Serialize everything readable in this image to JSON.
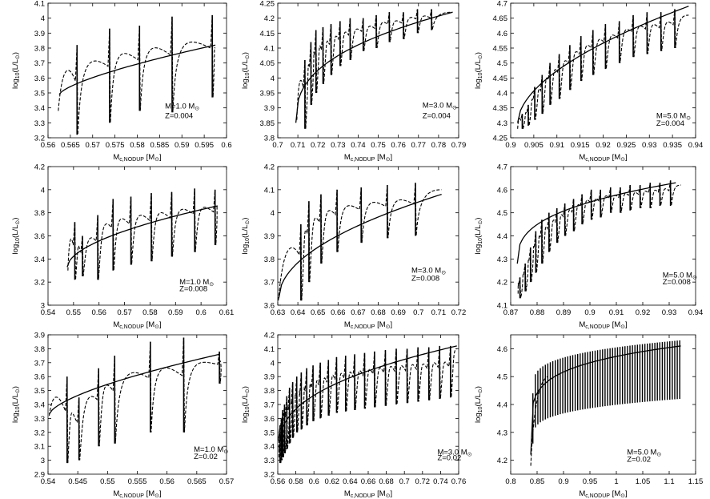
{
  "chart_data": [
    {
      "type": "line",
      "row": 0,
      "col": 0,
      "mass": "1.0",
      "z": "0.004",
      "xlim": [
        0.56,
        0.6
      ],
      "ylim": [
        3.2,
        4.1
      ],
      "xticks": [
        "0.56",
        "0.565",
        "0.57",
        "0.575",
        "0.58",
        "0.585",
        "0.59",
        "0.595",
        "0.6"
      ],
      "yticks": [
        "3.2",
        "3.3",
        "3.4",
        "3.5",
        "3.6",
        "3.7",
        "3.8",
        "3.9",
        "4",
        "4.1"
      ],
      "xtick_vals": [
        0.56,
        0.565,
        0.57,
        0.575,
        0.58,
        0.585,
        0.59,
        0.595,
        0.6
      ],
      "ytick_vals": [
        3.2,
        3.3,
        3.4,
        3.5,
        3.6,
        3.7,
        3.8,
        3.9,
        4.0,
        4.1
      ],
      "fit": {
        "x0": 0.5625,
        "x1": 0.5975,
        "y0": 3.49,
        "y1": 3.82,
        "p": 0.7
      },
      "pulses": [
        [
          0.5665,
          3.22,
          3.82
        ],
        [
          0.5738,
          3.3,
          3.93
        ],
        [
          0.5805,
          3.38,
          3.95
        ],
        [
          0.5878,
          3.37,
          4.01
        ],
        [
          0.5968,
          3.47,
          4.02
        ]
      ],
      "start": [
        0.5623,
        3.38
      ],
      "end": [
        0.5975,
        3.8
      ],
      "ann_x": 0.5862,
      "ann_y1": 3.395,
      "ann_y2": 3.33
    },
    {
      "type": "line",
      "row": 0,
      "col": 1,
      "mass": "3.0",
      "z": "0.004",
      "xlim": [
        0.7,
        0.79
      ],
      "ylim": [
        3.8,
        4.25
      ],
      "xticks": [
        "0.7",
        "0.71",
        "0.72",
        "0.73",
        "0.74",
        "0.75",
        "0.76",
        "0.77",
        "0.78",
        "0.79"
      ],
      "yticks": [
        "3.8",
        "3.85",
        "3.9",
        "3.95",
        "4",
        "4.05",
        "4.1",
        "4.15",
        "4.2",
        "4.25"
      ],
      "xtick_vals": [
        0.7,
        0.71,
        0.72,
        0.73,
        0.74,
        0.75,
        0.76,
        0.77,
        0.78,
        0.79
      ],
      "ytick_vals": [
        3.8,
        3.85,
        3.9,
        3.95,
        4.0,
        4.05,
        4.1,
        4.15,
        4.2,
        4.25
      ],
      "fit": {
        "x0": 0.709,
        "x1": 0.787,
        "y0": 3.85,
        "y1": 4.22,
        "p": 0.38
      },
      "pulses": [
        [
          0.7135,
          3.83,
          4.06
        ],
        [
          0.7165,
          3.91,
          4.12
        ],
        [
          0.719,
          3.95,
          4.16
        ],
        [
          0.7225,
          3.98,
          4.17
        ],
        [
          0.7265,
          4.01,
          4.18
        ],
        [
          0.731,
          4.04,
          4.19
        ],
        [
          0.736,
          4.06,
          4.2
        ],
        [
          0.7425,
          4.09,
          4.2
        ],
        [
          0.749,
          4.1,
          4.21
        ],
        [
          0.7555,
          4.12,
          4.22
        ],
        [
          0.7625,
          4.13,
          4.22
        ],
        [
          0.7695,
          4.15,
          4.23
        ],
        [
          0.7765,
          4.16,
          4.23
        ]
      ],
      "start": [
        0.7095,
        3.86
      ],
      "end": [
        0.787,
        4.22
      ],
      "ann_x": 0.772,
      "ann_y1": 3.9,
      "ann_y2": 3.865
    },
    {
      "type": "line",
      "row": 0,
      "col": 2,
      "mass": "5.0",
      "z": "0.004",
      "xlim": [
        0.9,
        0.94
      ],
      "ylim": [
        4.25,
        4.7
      ],
      "xticks": [
        "0.9",
        "0.905",
        "0.91",
        "0.915",
        "0.92",
        "0.925",
        "0.93",
        "0.935",
        "0.94"
      ],
      "yticks": [
        "4.25",
        "4.3",
        "4.35",
        "4.4",
        "4.45",
        "4.5",
        "4.55",
        "4.6",
        "4.65",
        "4.7"
      ],
      "xtick_vals": [
        0.9,
        0.905,
        0.91,
        0.915,
        0.92,
        0.925,
        0.93,
        0.935,
        0.94
      ],
      "ytick_vals": [
        4.25,
        4.3,
        4.35,
        4.4,
        4.45,
        4.5,
        4.55,
        4.6,
        4.65,
        4.7
      ],
      "fit": {
        "x0": 0.9015,
        "x1": 0.9385,
        "y0": 4.3,
        "y1": 4.69,
        "p": 0.55
      },
      "pulses": [
        [
          0.9025,
          4.28,
          4.33
        ],
        [
          0.9038,
          4.29,
          4.36
        ],
        [
          0.9052,
          4.31,
          4.42
        ],
        [
          0.9068,
          4.33,
          4.46
        ],
        [
          0.9085,
          4.36,
          4.5
        ],
        [
          0.9105,
          4.38,
          4.53
        ],
        [
          0.9128,
          4.41,
          4.56
        ],
        [
          0.9152,
          4.44,
          4.59
        ],
        [
          0.9178,
          4.46,
          4.61
        ],
        [
          0.9205,
          4.48,
          4.63
        ],
        [
          0.9235,
          4.5,
          4.64
        ],
        [
          0.9265,
          4.52,
          4.66
        ],
        [
          0.9295,
          4.53,
          4.67
        ],
        [
          0.9325,
          4.54,
          4.67
        ],
        [
          0.9355,
          4.55,
          4.68
        ]
      ],
      "start": [
        0.9015,
        4.28
      ],
      "end": [
        0.9385,
        4.66
      ],
      "ann_x": 0.9315,
      "ann_y1": 4.315,
      "ann_y2": 4.29
    },
    {
      "type": "line",
      "row": 1,
      "col": 0,
      "mass": "1.0",
      "z": "0.008",
      "xlim": [
        0.54,
        0.61
      ],
      "ylim": [
        3.0,
        4.2
      ],
      "xticks": [
        "0.54",
        "0.55",
        "0.56",
        "0.57",
        "0.58",
        "0.59",
        "0.6",
        "0.61"
      ],
      "yticks": [
        "3",
        "3.2",
        "3.4",
        "3.6",
        "3.8",
        "4",
        "4.2"
      ],
      "xtick_vals": [
        0.54,
        0.55,
        0.56,
        0.57,
        0.58,
        0.59,
        0.6,
        0.61
      ],
      "ytick_vals": [
        3.0,
        3.2,
        3.4,
        3.6,
        3.8,
        4.0,
        4.2
      ],
      "fit": {
        "x0": 0.5475,
        "x1": 0.6065,
        "y0": 3.33,
        "y1": 3.86,
        "p": 0.55
      },
      "pulses": [
        [
          0.5505,
          3.22,
          3.72
        ],
        [
          0.5535,
          3.25,
          3.6
        ],
        [
          0.5595,
          3.22,
          3.78
        ],
        [
          0.5655,
          3.3,
          3.92
        ],
        [
          0.5725,
          3.35,
          3.94
        ],
        [
          0.5805,
          3.38,
          3.97
        ],
        [
          0.5885,
          3.42,
          3.98
        ],
        [
          0.5975,
          3.46,
          4.01
        ],
        [
          0.6055,
          3.52,
          4.0
        ]
      ],
      "start": [
        0.5478,
        3.3
      ],
      "end": [
        0.6065,
        3.86
      ],
      "ann_x": 0.5915,
      "ann_y1": 3.18,
      "ann_y2": 3.12
    },
    {
      "type": "line",
      "row": 1,
      "col": 1,
      "mass": "3.0",
      "z": "0.008",
      "xlim": [
        0.63,
        0.72
      ],
      "ylim": [
        3.6,
        4.2
      ],
      "xticks": [
        "0.63",
        "0.64",
        "0.65",
        "0.66",
        "0.67",
        "0.68",
        "0.69",
        "0.7",
        "0.71",
        "0.72"
      ],
      "yticks": [
        "3.6",
        "3.7",
        "3.8",
        "3.9",
        "4",
        "4.1",
        "4.2"
      ],
      "xtick_vals": [
        0.63,
        0.64,
        0.65,
        0.66,
        0.67,
        0.68,
        0.69,
        0.7,
        0.71,
        0.72
      ],
      "ytick_vals": [
        3.6,
        3.7,
        3.8,
        3.9,
        4.0,
        4.1,
        4.2
      ],
      "fit": {
        "x0": 0.6305,
        "x1": 0.7115,
        "y0": 3.63,
        "y1": 4.08,
        "p": 0.5
      },
      "pulses": [
        [
          0.6415,
          3.62,
          3.95
        ],
        [
          0.6455,
          3.7,
          4.05
        ],
        [
          0.6515,
          3.78,
          4.08
        ],
        [
          0.6595,
          3.83,
          4.1
        ],
        [
          0.6715,
          3.87,
          4.11
        ],
        [
          0.6845,
          3.89,
          4.12
        ],
        [
          0.6985,
          3.9,
          4.13
        ]
      ],
      "start": [
        0.6303,
        3.62
      ],
      "end": [
        0.7115,
        4.1
      ],
      "ann_x": 0.6965,
      "ann_y1": 3.74,
      "ann_y2": 3.705
    },
    {
      "type": "line",
      "row": 1,
      "col": 2,
      "mass": "5.0",
      "z": "0.008",
      "xlim": [
        0.87,
        0.94
      ],
      "ylim": [
        4.1,
        4.7
      ],
      "xticks": [
        "0.87",
        "0.88",
        "0.89",
        "0.9",
        "0.91",
        "0.92",
        "0.93",
        "0.94"
      ],
      "yticks": [
        "4.1",
        "4.2",
        "4.3",
        "4.4",
        "4.5",
        "4.6",
        "4.7"
      ],
      "xtick_vals": [
        0.87,
        0.88,
        0.89,
        0.9,
        0.91,
        0.92,
        0.93,
        0.94
      ],
      "ytick_vals": [
        4.1,
        4.2,
        4.3,
        4.4,
        4.5,
        4.6,
        4.7
      ],
      "fit": {
        "x0": 0.8725,
        "x1": 0.9325,
        "y0": 4.28,
        "y1": 4.63,
        "p": 0.35
      },
      "pulses": [
        [
          0.8735,
          4.13,
          4.22
        ],
        [
          0.8755,
          4.16,
          4.28
        ],
        [
          0.8775,
          4.2,
          4.35
        ],
        [
          0.8795,
          4.24,
          4.42
        ],
        [
          0.8818,
          4.28,
          4.47
        ],
        [
          0.8845,
          4.33,
          4.5
        ],
        [
          0.8875,
          4.37,
          4.52
        ],
        [
          0.8905,
          4.4,
          4.54
        ],
        [
          0.8938,
          4.42,
          4.56
        ],
        [
          0.897,
          4.45,
          4.58
        ],
        [
          0.9005,
          4.47,
          4.6
        ],
        [
          0.904,
          4.48,
          4.6
        ],
        [
          0.9078,
          4.5,
          4.61
        ],
        [
          0.9115,
          4.5,
          4.61
        ],
        [
          0.9152,
          4.51,
          4.62
        ],
        [
          0.919,
          4.52,
          4.62
        ],
        [
          0.9228,
          4.52,
          4.63
        ],
        [
          0.9265,
          4.53,
          4.63
        ],
        [
          0.9305,
          4.53,
          4.64
        ]
      ],
      "start": [
        0.8728,
        4.15
      ],
      "end": [
        0.9345,
        4.62
      ],
      "ann_x": 0.9275,
      "ann_y1": 4.22,
      "ann_y2": 4.19
    },
    {
      "type": "line",
      "row": 2,
      "col": 0,
      "mass": "1.0",
      "z": "0.02",
      "xlim": [
        0.54,
        0.57
      ],
      "ylim": [
        2.9,
        3.9
      ],
      "xticks": [
        "0.54",
        "0.545",
        "0.55",
        "0.555",
        "0.56",
        "0.565",
        "0.57"
      ],
      "yticks": [
        "2.9",
        "3",
        "3.1",
        "3.2",
        "3.3",
        "3.4",
        "3.5",
        "3.6",
        "3.7",
        "3.8",
        "3.9"
      ],
      "xtick_vals": [
        0.54,
        0.545,
        0.55,
        0.555,
        0.56,
        0.565,
        0.57
      ],
      "ytick_vals": [
        2.9,
        3.0,
        3.1,
        3.2,
        3.3,
        3.4,
        3.5,
        3.6,
        3.7,
        3.8,
        3.9
      ],
      "fit": {
        "x0": 0.5402,
        "x1": 0.5688,
        "y0": 3.33,
        "y1": 3.76,
        "p": 0.65
      },
      "pulses": [
        [
          0.5432,
          2.98,
          3.6
        ],
        [
          0.5452,
          3.0,
          3.45
        ],
        [
          0.5485,
          3.1,
          3.66
        ],
        [
          0.5512,
          3.12,
          3.75
        ],
        [
          0.5572,
          3.2,
          3.85
        ],
        [
          0.5628,
          3.2,
          3.88
        ],
        [
          0.5688,
          3.55,
          3.78
        ]
      ],
      "start": [
        0.5402,
        3.32
      ],
      "end": [
        0.5688,
        3.72
      ],
      "ann_x": 0.5645,
      "ann_y1": 3.06,
      "ann_y2": 3.01
    },
    {
      "type": "line",
      "row": 2,
      "col": 1,
      "mass": "3.0",
      "z": "0.02",
      "xlim": [
        0.56,
        0.76
      ],
      "ylim": [
        3.2,
        4.2
      ],
      "xticks": [
        "0.56",
        "0.58",
        "0.6",
        "0.62",
        "0.64",
        "0.66",
        "0.68",
        "0.7",
        "0.72",
        "0.74",
        "0.76"
      ],
      "yticks": [
        "3.2",
        "3.3",
        "3.4",
        "3.5",
        "3.6",
        "3.7",
        "3.8",
        "3.9",
        "4",
        "4.1",
        "4.2"
      ],
      "xtick_vals": [
        0.56,
        0.58,
        0.6,
        0.62,
        0.64,
        0.66,
        0.68,
        0.7,
        0.72,
        0.74,
        0.76
      ],
      "ytick_vals": [
        3.2,
        3.3,
        3.4,
        3.5,
        3.6,
        3.7,
        3.8,
        3.9,
        4.0,
        4.1,
        4.2
      ],
      "fit": {
        "x0": 0.5615,
        "x1": 0.758,
        "y0": 3.38,
        "y1": 4.12,
        "p": 0.4
      },
      "pulses": [
        [
          0.5625,
          3.28,
          3.55
        ],
        [
          0.564,
          3.3,
          3.6
        ],
        [
          0.5655,
          3.32,
          3.66
        ],
        [
          0.5675,
          3.35,
          3.7
        ],
        [
          0.57,
          3.38,
          3.76
        ],
        [
          0.573,
          3.42,
          3.82
        ],
        [
          0.5765,
          3.46,
          3.86
        ],
        [
          0.581,
          3.5,
          3.9
        ],
        [
          0.586,
          3.52,
          3.93
        ],
        [
          0.592,
          3.55,
          3.96
        ],
        [
          0.599,
          3.58,
          3.98
        ],
        [
          0.607,
          3.6,
          4.0
        ],
        [
          0.616,
          3.62,
          4.02
        ],
        [
          0.625,
          3.64,
          4.04
        ],
        [
          0.635,
          3.65,
          4.05
        ],
        [
          0.645,
          3.66,
          4.06
        ],
        [
          0.656,
          3.67,
          4.07
        ],
        [
          0.667,
          3.68,
          4.08
        ],
        [
          0.679,
          3.69,
          4.09
        ],
        [
          0.691,
          3.7,
          4.1
        ],
        [
          0.703,
          3.71,
          4.1
        ],
        [
          0.715,
          3.72,
          4.11
        ],
        [
          0.727,
          3.73,
          4.11
        ],
        [
          0.739,
          3.74,
          4.12
        ],
        [
          0.751,
          3.75,
          4.12
        ]
      ],
      "start": [
        0.5615,
        3.32
      ],
      "end": [
        0.758,
        4.1
      ],
      "ann_x": 0.7365,
      "ann_y1": 3.34,
      "ann_y2": 3.3
    },
    {
      "type": "line",
      "row": 2,
      "col": 2,
      "mass": "5.0",
      "z": "0.02",
      "xlim": [
        0.8,
        1.15
      ],
      "ylim": [
        4.15,
        4.65
      ],
      "xticks": [
        "0.8",
        "0.85",
        "0.9",
        "0.95",
        "1",
        "1.05",
        "1.1",
        "1.15"
      ],
      "yticks": [
        "4.2",
        "4.3",
        "4.4",
        "4.5",
        "4.6"
      ],
      "xtick_vals": [
        0.8,
        0.85,
        0.9,
        0.95,
        1.0,
        1.05,
        1.1,
        1.15
      ],
      "ytick_vals": [
        4.2,
        4.3,
        4.4,
        4.5,
        4.6
      ],
      "fit": {
        "x0": 0.838,
        "x1": 1.122,
        "y0": 4.22,
        "y1": 4.61,
        "p": 0.18
      },
      "dense": {
        "x0": 0.842,
        "x1": 1.12,
        "n": 60,
        "lo0": 4.26,
        "lo1": 4.42,
        "hi0": 4.44,
        "hi1": 4.63
      },
      "start": [
        0.838,
        4.18
      ],
      "end": [
        1.122,
        4.6
      ],
      "ann_x": 1.02,
      "ann_y1": 4.22,
      "ann_y2": 4.195
    }
  ]
}
